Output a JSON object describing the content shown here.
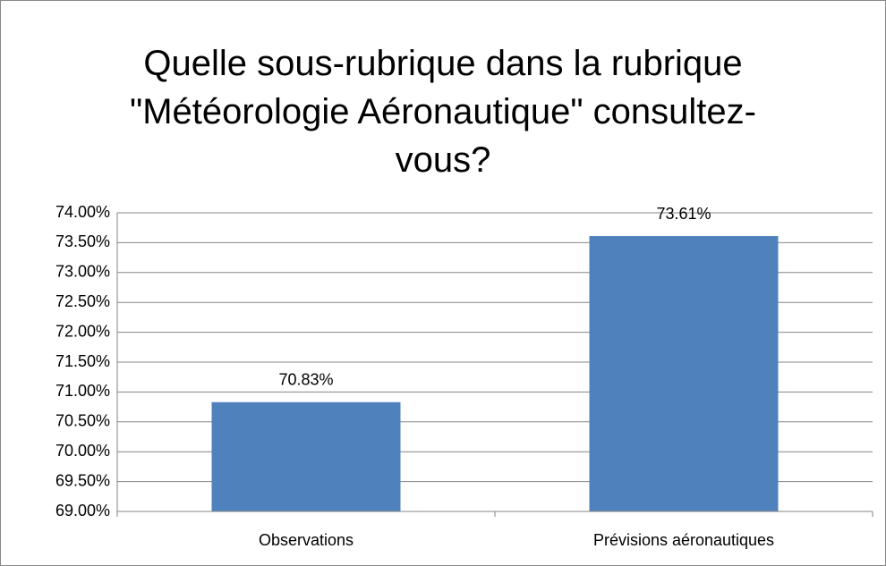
{
  "chart_data": {
    "type": "bar",
    "title": "Quelle sous-rubrique dans la rubrique \"Météorologie Aéronautique\" consultez-vous?",
    "categories": [
      "Observations",
      "Prévisions aéronautiques"
    ],
    "values": [
      70.83,
      73.61
    ],
    "value_labels": [
      "70.83%",
      "73.61%"
    ],
    "color": "#4f81bd",
    "ylim": [
      69,
      74
    ],
    "yticks": [
      {
        "value": 69,
        "label": "69.00%"
      },
      {
        "value": 69.5,
        "label": "69.50%"
      },
      {
        "value": 70,
        "label": "70.00%"
      },
      {
        "value": 70.5,
        "label": "70.50%"
      },
      {
        "value": 71,
        "label": "71.00%"
      },
      {
        "value": 71.5,
        "label": "71.50%"
      },
      {
        "value": 72,
        "label": "72.00%"
      },
      {
        "value": 72.5,
        "label": "72.50%"
      },
      {
        "value": 73,
        "label": "73.00%"
      },
      {
        "value": 73.5,
        "label": "73.50%"
      },
      {
        "value": 74,
        "label": "74.00%"
      }
    ],
    "grid": true
  }
}
